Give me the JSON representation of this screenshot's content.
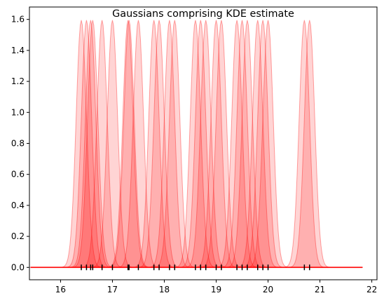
{
  "chart_data": {
    "type": "area",
    "title": "Gaussians comprising KDE estimate",
    "xlabel": "",
    "ylabel": "",
    "xlim": [
      15.4,
      22.1
    ],
    "ylim": [
      -0.08,
      1.68
    ],
    "xticks": [
      16,
      17,
      18,
      19,
      20,
      21,
      22
    ],
    "yticks": [
      0.0,
      0.2,
      0.4,
      0.6,
      0.8,
      1.0,
      1.2,
      1.4,
      1.6
    ],
    "peak_height": 1.595,
    "kernel_sigma": 0.1,
    "x_range": [
      15.42,
      21.82
    ],
    "fill_color": "#ff0000",
    "rug_color": "#000000",
    "baseline_color": "#ff0000",
    "grid": false,
    "data_points": [
      16.4,
      16.5,
      16.58,
      16.62,
      16.8,
      17.0,
      17.3,
      17.32,
      17.5,
      17.8,
      17.9,
      18.1,
      18.2,
      18.6,
      18.7,
      18.8,
      19.0,
      19.1,
      19.4,
      19.5,
      19.6,
      19.8,
      19.9,
      20.0,
      20.7,
      20.8
    ]
  }
}
